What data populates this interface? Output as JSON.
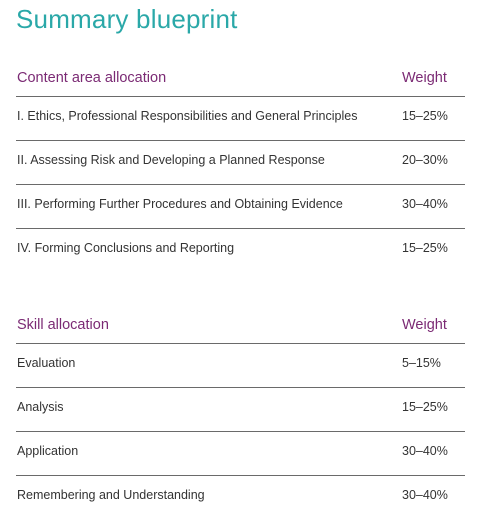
{
  "title": "Summary blueprint",
  "content_table": {
    "header_left": "Content area allocation",
    "header_right": "Weight",
    "rows": [
      {
        "label": "I. Ethics, Professional Responsibilities and General Principles",
        "weight": "15–25%"
      },
      {
        "label": "II. Assessing Risk and Developing a Planned Response",
        "weight": "20–30%"
      },
      {
        "label": "III. Performing Further Procedures and Obtaining Evidence",
        "weight": "30–40%"
      },
      {
        "label": "IV. Forming Conclusions and Reporting",
        "weight": "15–25%"
      }
    ]
  },
  "skill_table": {
    "header_left": "Skill allocation",
    "header_right": "Weight",
    "rows": [
      {
        "label": "Evaluation",
        "weight": "5–15%"
      },
      {
        "label": "Analysis",
        "weight": "15–25%"
      },
      {
        "label": "Application",
        "weight": "30–40%"
      },
      {
        "label": "Remembering and Understanding",
        "weight": "30–40%"
      }
    ]
  },
  "colors": {
    "title": "#2aa8a8",
    "header": "#7b2a74",
    "text": "#333333",
    "rule": "#6a6a6a"
  }
}
